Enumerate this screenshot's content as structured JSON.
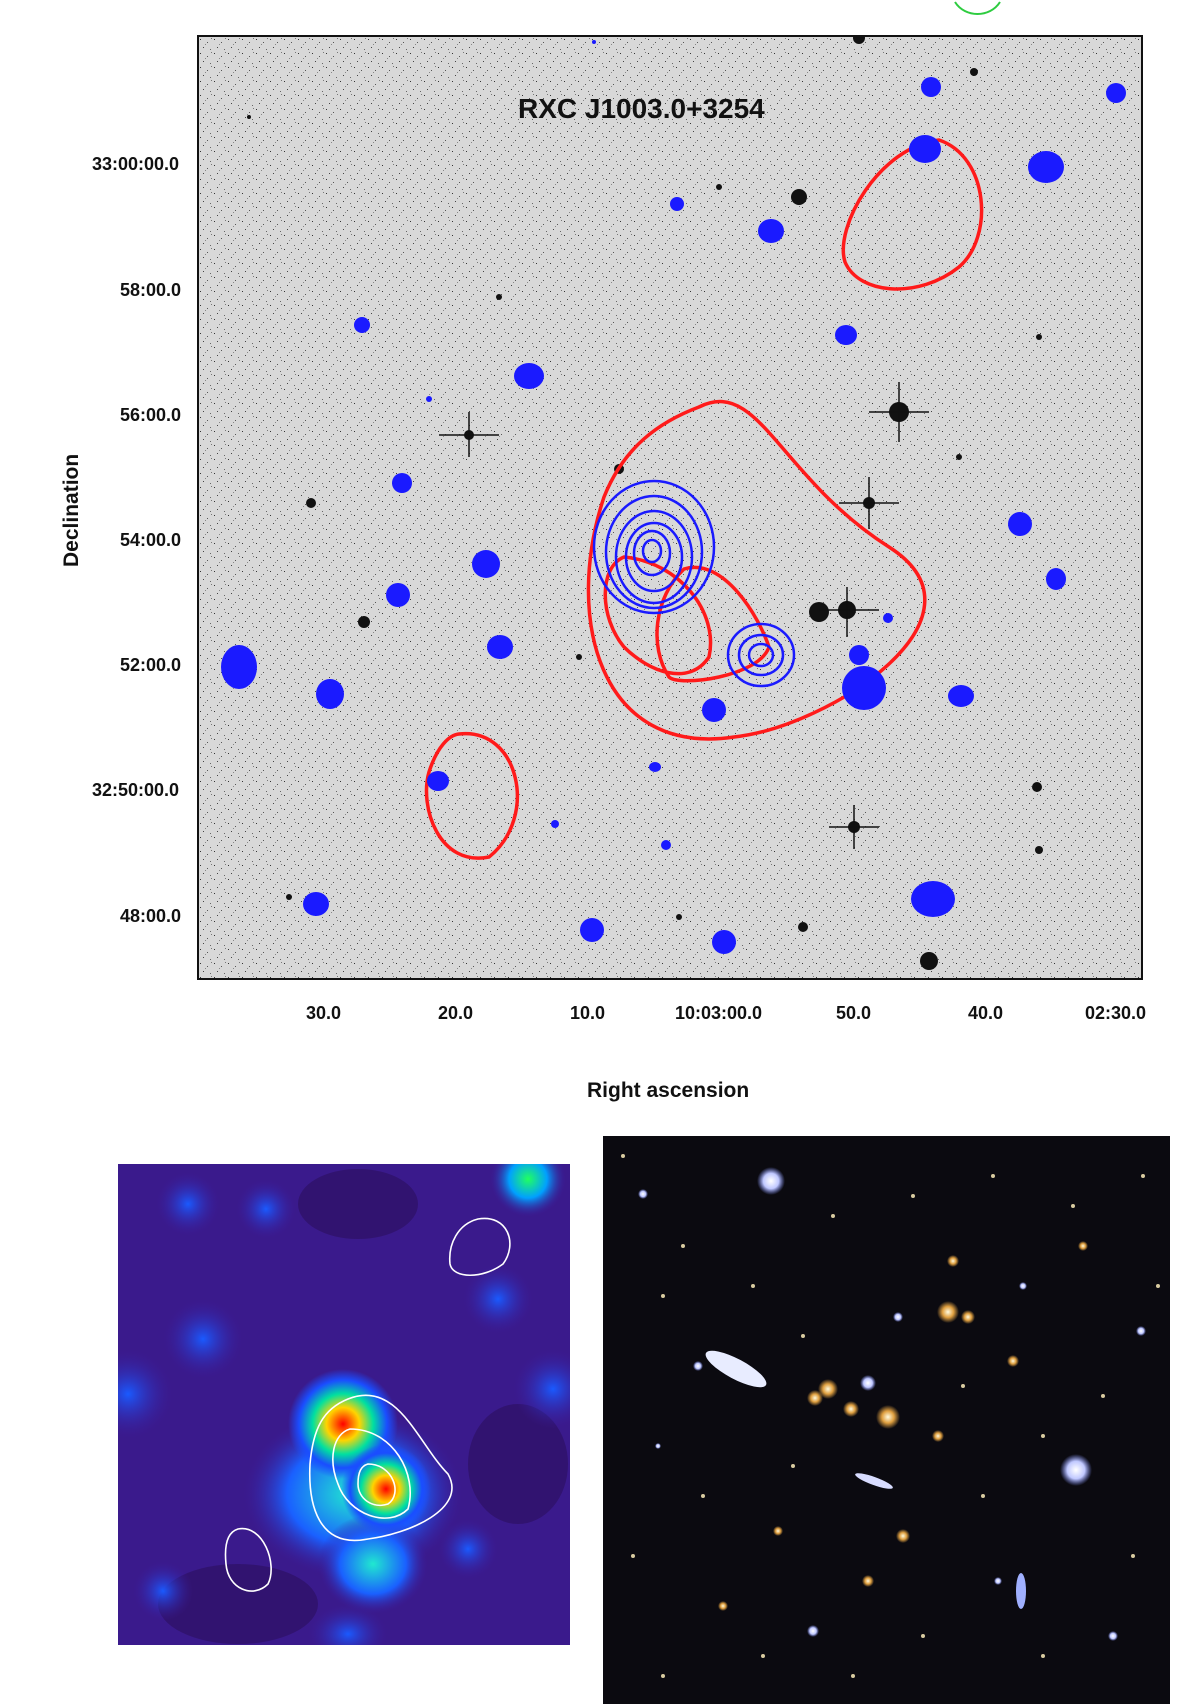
{
  "figure": {
    "title": "RXC J1003.0+3254",
    "xlabel": "Right ascension",
    "ylabel": "Declination",
    "ra_ticks": [
      "30.0",
      "20.0",
      "10.0",
      "10:03:00.0",
      "50.0",
      "40.0",
      "02:30.0"
    ],
    "dec_ticks": [
      "33:00:00.0",
      "58:00.0",
      "56:00.0",
      "54:00.0",
      "52:00.0",
      "32:50:00.0",
      "48:00.0"
    ],
    "contour_colors": {
      "optical_density": "#ff1a1a",
      "xray_sources": "#1a1aff",
      "inset_contours": "#ffffff"
    }
  },
  "panels": {
    "main": "optical greyscale image with red and blue contours",
    "lower_left": "smoothed false-colour map with white contours",
    "lower_right": "colour optical image of the cluster field"
  }
}
